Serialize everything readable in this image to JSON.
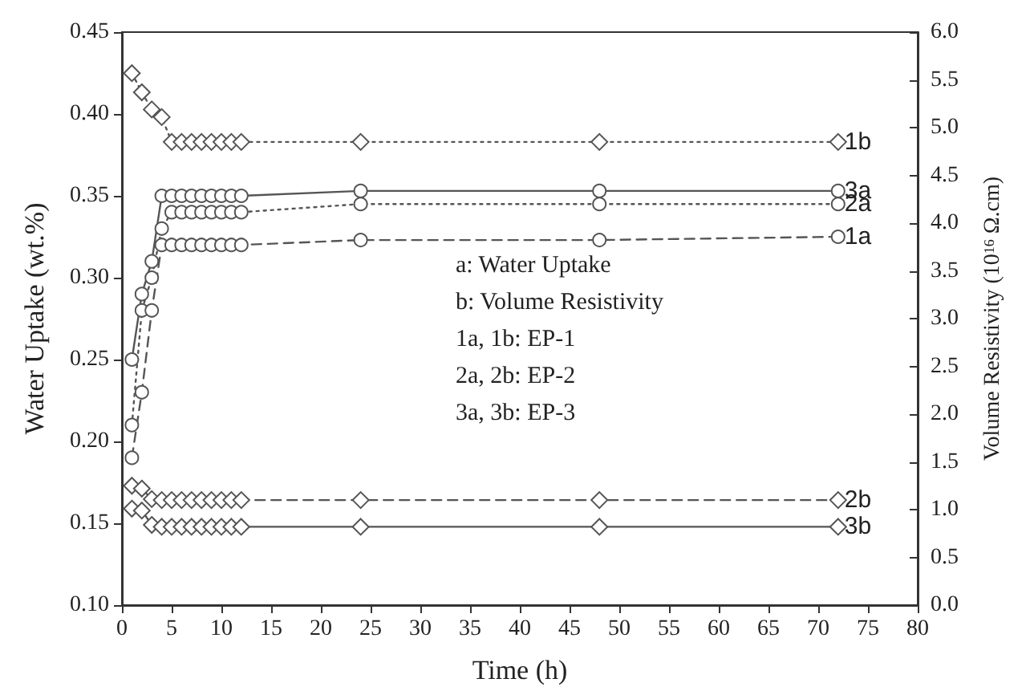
{
  "chart_data": {
    "type": "line",
    "xlabel": "Time (h)",
    "ylabel": "Water Uptake (wt.%)",
    "y2label": "Volume Resistivity (10$^{16}$ Ω.cm)",
    "x": [
      1,
      2,
      3,
      4,
      5,
      6,
      7,
      8,
      9,
      10,
      11,
      12,
      24,
      48,
      72
    ],
    "series": [
      {
        "name": "1b",
        "color": "#555555",
        "marker": "diamond",
        "line_style": "dotted",
        "axis": "y2",
        "values": [
          5.57,
          5.37,
          5.19,
          5.11,
          4.85,
          4.85,
          4.85,
          4.85,
          4.85,
          4.85,
          4.85,
          4.85,
          4.85,
          4.85,
          4.85
        ]
      },
      {
        "name": "3a",
        "color": "#555555",
        "marker": "circle",
        "line_style": "solid",
        "values": [
          0.25,
          0.29,
          0.31,
          0.35,
          0.35,
          0.35,
          0.35,
          0.35,
          0.35,
          0.35,
          0.35,
          0.35,
          0.353,
          0.353,
          0.353
        ]
      },
      {
        "name": "2a",
        "color": "#555555",
        "marker": "circle",
        "line_style": "dotted",
        "values": [
          0.21,
          0.28,
          0.3,
          0.33,
          0.34,
          0.34,
          0.34,
          0.34,
          0.34,
          0.34,
          0.34,
          0.34,
          0.345,
          0.345,
          0.345
        ]
      },
      {
        "name": "1a",
        "color": "#555555",
        "marker": "circle",
        "line_style": "dashed",
        "values": [
          0.19,
          0.23,
          0.28,
          0.32,
          0.32,
          0.32,
          0.32,
          0.32,
          0.32,
          0.32,
          0.32,
          0.32,
          0.323,
          0.323,
          0.325
        ]
      },
      {
        "name": "2b",
        "color": "#555555",
        "marker": "diamond",
        "line_style": "dashed",
        "axis": "y2",
        "values": [
          1.25,
          1.22,
          1.11,
          1.1,
          1.1,
          1.1,
          1.1,
          1.1,
          1.1,
          1.1,
          1.1,
          1.1,
          1.1,
          1.1,
          1.1
        ]
      },
      {
        "name": "3b",
        "color": "#555555",
        "marker": "diamond",
        "line_style": "solid",
        "axis": "y2",
        "values": [
          1.01,
          0.99,
          0.84,
          0.82,
          0.82,
          0.82,
          0.82,
          0.82,
          0.82,
          0.82,
          0.82,
          0.82,
          0.82,
          0.82,
          0.82
        ]
      }
    ],
    "xlim": [
      0,
      80
    ],
    "xticks": [
      0,
      5,
      10,
      15,
      20,
      25,
      30,
      35,
      40,
      45,
      50,
      55,
      60,
      65,
      70,
      75,
      80
    ],
    "ylim": [
      0.1,
      0.45
    ],
    "yticks": [
      {
        "value": 0.1,
        "label": "0.10"
      },
      0.15,
      {
        "value": 0.2,
        "label": "0.20"
      },
      0.25,
      {
        "value": 0.3,
        "label": "0.30"
      },
      0.35,
      {
        "value": 0.4,
        "label": "0.40"
      },
      0.45
    ],
    "y2lim": [
      0,
      6
    ],
    "y2ticks": [
      {
        "value": 0,
        "label": "0.0"
      },
      0.5,
      {
        "value": 1,
        "label": "1.0"
      },
      1.5,
      {
        "value": 2,
        "label": "2.0"
      },
      2.5,
      {
        "value": 3,
        "label": "3.0"
      },
      3.5,
      {
        "value": 4,
        "label": "4.0"
      },
      4.5,
      {
        "value": 5,
        "label": "5.0"
      },
      5.5,
      {
        "value": 6,
        "label": "6.0"
      }
    ],
    "annotations": [
      "a: Water Uptake",
      "b: Volume Resistivity",
      "1a, 1b: EP-1",
      "2a, 2b: EP-2",
      "3a, 3b: EP-3"
    ],
    "grid": false,
    "legend": false
  }
}
